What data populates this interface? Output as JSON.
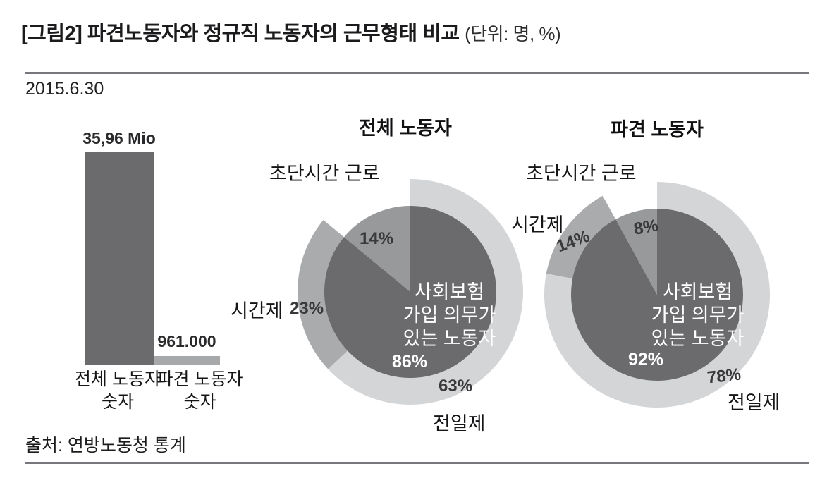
{
  "header": {
    "title": "[그림2] 파견노동자와 정규직 노동자의 근무형태 비교",
    "unit_note": "(단위: 명, %)",
    "date": "2015.6.30"
  },
  "footer": {
    "source": "출처: 연방노동청 통계"
  },
  "colors": {
    "bar_total": "#6b6b6d",
    "bar_temp": "#a7a8aa",
    "inner_main": "#6b6b6d",
    "inner_rest": "#98999b",
    "ring_fulltime": "#d4d5d7",
    "ring_parttime": "#aaabad",
    "ring_marginal": "#ffffff",
    "rule": "#77787b"
  },
  "chart_data": [
    {
      "type": "bar",
      "title": "",
      "categories": [
        "전체 노동자\n숫자",
        "파견 노동자\n숫자"
      ],
      "values": [
        35960000,
        961000
      ],
      "value_labels": [
        "35,96 Mio",
        "961.000"
      ],
      "colors": [
        "#6b6b6d",
        "#a7a8aa"
      ],
      "ylim": [
        0,
        36000000
      ],
      "grid": false,
      "unit": "명"
    },
    {
      "type": "pie",
      "title": "전체 노동자",
      "legend_position": "around",
      "rings": {
        "outer": [
          {
            "label": "전일제",
            "value": 63,
            "color": "#d4d5d7"
          },
          {
            "label": "시간제",
            "value": 23,
            "color": "#aaabad"
          },
          {
            "label": "초단시간 근로",
            "value": 14,
            "color": "#ffffff"
          }
        ],
        "inner": [
          {
            "label": "사회보험\n가입 의무가\n있는 노동자",
            "value": 86,
            "color": "#6b6b6d"
          },
          {
            "label": "",
            "value": 14,
            "color": "#98999b"
          }
        ]
      }
    },
    {
      "type": "pie",
      "title": "파견 노동자",
      "legend_position": "around",
      "rings": {
        "outer": [
          {
            "label": "전일제",
            "value": 78,
            "color": "#d4d5d7"
          },
          {
            "label": "시간제",
            "value": 14,
            "color": "#aaabad"
          },
          {
            "label": "초단시간 근로",
            "value": 8,
            "color": "#ffffff"
          }
        ],
        "inner": [
          {
            "label": "사회보험\n가입 의무가\n있는 노동자",
            "value": 92,
            "color": "#6b6b6d"
          },
          {
            "label": "",
            "value": 8,
            "color": "#98999b"
          }
        ]
      }
    }
  ]
}
